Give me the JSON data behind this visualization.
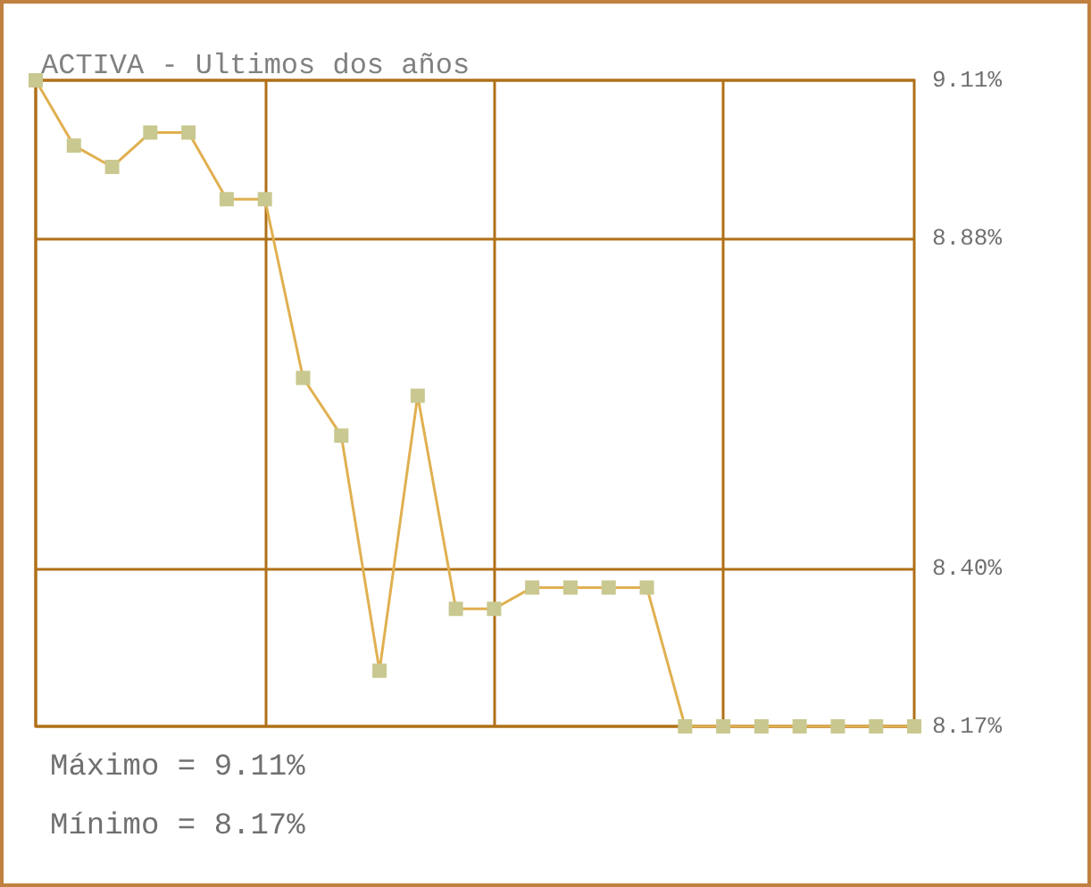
{
  "chart_data": {
    "type": "line",
    "title": "ACTIVA - Ultimos dos años",
    "categories": [
      null,
      null,
      null,
      null,
      null,
      null,
      null,
      null,
      null,
      null,
      null,
      null,
      null,
      null,
      null,
      null,
      null,
      null,
      null,
      null,
      null,
      null,
      null,
      null
    ],
    "series": [
      {
        "color": "#e0b050",
        "values": [
          9.11,
          9.015,
          8.984,
          9.034,
          9.034,
          8.937,
          8.937,
          8.677,
          8.593,
          8.251,
          8.651,
          8.341,
          8.341,
          8.372,
          8.372,
          8.372,
          8.372,
          8.17,
          8.17,
          8.17,
          8.17,
          8.17,
          8.17,
          8.17
        ]
      }
    ],
    "ylim": [
      8.17,
      9.11
    ],
    "yticks": [
      {
        "value": 8.17,
        "label": "8.17%"
      },
      {
        "value": 8.4,
        "label": "8.40%"
      },
      {
        "value": 8.88,
        "label": "8.88%"
      },
      {
        "value": 9.11,
        "label": "9.11%"
      }
    ],
    "annotations": [
      "Máximo = 9.11%",
      "Mínimo = 8.17%"
    ],
    "grid": true,
    "marker": "square",
    "tick_labels": "y"
  }
}
